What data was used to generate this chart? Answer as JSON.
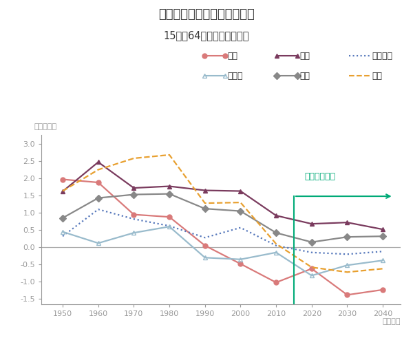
{
  "title": "世界銀行の人口推計",
  "title_dashes": "－　世界銀行の人口推計　－",
  "subtitle": "15歳～64歳の労働可能人口",
  "xlabel": "（年代）",
  "ylabel": "（年率％）",
  "annotation": "世界銀行予測",
  "forecast_x": 2015,
  "years_historical": [
    1950,
    1960,
    1970,
    1980,
    1990,
    2000,
    2010
  ],
  "years_forecast": [
    2020,
    2030,
    2040
  ],
  "series": {
    "日本": {
      "color": "#d97a7a",
      "linestyle": "solid",
      "marker": "o",
      "markerfacecolor": "#d97a7a",
      "data": {
        "1950": 1.97,
        "1960": 1.88,
        "1970": 0.95,
        "1980": 0.88,
        "1990": 0.05,
        "2000": -0.48,
        "2010": -1.02,
        "2020": -0.62,
        "2030": -1.38,
        "2040": -1.23
      }
    },
    "豪州": {
      "color": "#7a3b5e",
      "linestyle": "solid",
      "marker": "^",
      "markerfacecolor": "#7a3b5e",
      "data": {
        "1950": 1.62,
        "1960": 2.47,
        "1970": 1.72,
        "1980": 1.77,
        "1990": 1.65,
        "2000": 1.63,
        "2010": 0.92,
        "2020": 0.68,
        "2030": 0.72,
        "2040": 0.52
      }
    },
    "フランス": {
      "color": "#5577bb",
      "linestyle": "dotted",
      "marker": null,
      "markerfacecolor": null,
      "data": {
        "1950": 0.32,
        "1960": 1.1,
        "1970": 0.82,
        "1980": 0.62,
        "1990": 0.28,
        "2000": 0.57,
        "2010": 0.05,
        "2020": -0.15,
        "2030": -0.2,
        "2040": -0.12
      }
    },
    "ドイツ": {
      "color": "#99bbcc",
      "linestyle": "solid",
      "marker": "^",
      "markerfacecolor": "none",
      "data": {
        "1950": 0.45,
        "1960": 0.12,
        "1970": 0.42,
        "1980": 0.6,
        "1990": -0.3,
        "2000": -0.35,
        "2010": -0.15,
        "2020": -0.82,
        "2030": -0.52,
        "2040": -0.38
      }
    },
    "米国": {
      "color": "#888888",
      "linestyle": "solid",
      "marker": "D",
      "markerfacecolor": "#888888",
      "data": {
        "1950": 0.85,
        "1960": 1.43,
        "1970": 1.53,
        "1980": 1.55,
        "1990": 1.12,
        "2000": 1.05,
        "2010": 0.42,
        "2020": 0.15,
        "2030": 0.3,
        "2040": 0.32
      }
    },
    "中国": {
      "color": "#e8a030",
      "linestyle": "dashed",
      "marker": null,
      "markerfacecolor": null,
      "data": {
        "1950": 1.63,
        "1960": 2.25,
        "1970": 2.58,
        "1980": 2.68,
        "1990": 1.28,
        "2000": 1.3,
        "2010": 0.1,
        "2020": -0.58,
        "2030": -0.72,
        "2040": -0.62
      }
    }
  },
  "xlim": [
    1944,
    2045
  ],
  "ylim": [
    -1.65,
    3.25
  ],
  "yticks": [
    -1.5,
    -1.0,
    -0.5,
    0.0,
    0.5,
    1.0,
    1.5,
    2.0,
    2.5,
    3.0
  ],
  "xticks": [
    1950,
    1960,
    1970,
    1980,
    1990,
    2000,
    2010,
    2020,
    2030,
    2040
  ],
  "bg_color": "#ffffff",
  "title_color": "#333333",
  "axis_color": "#999999",
  "forecast_color": "#00aa77",
  "zero_line_color": "#aaaaaa",
  "legend_row1": [
    "日本",
    "豪州",
    "フランス"
  ],
  "legend_row2": [
    "ドイツ",
    "米国",
    "中国"
  ]
}
